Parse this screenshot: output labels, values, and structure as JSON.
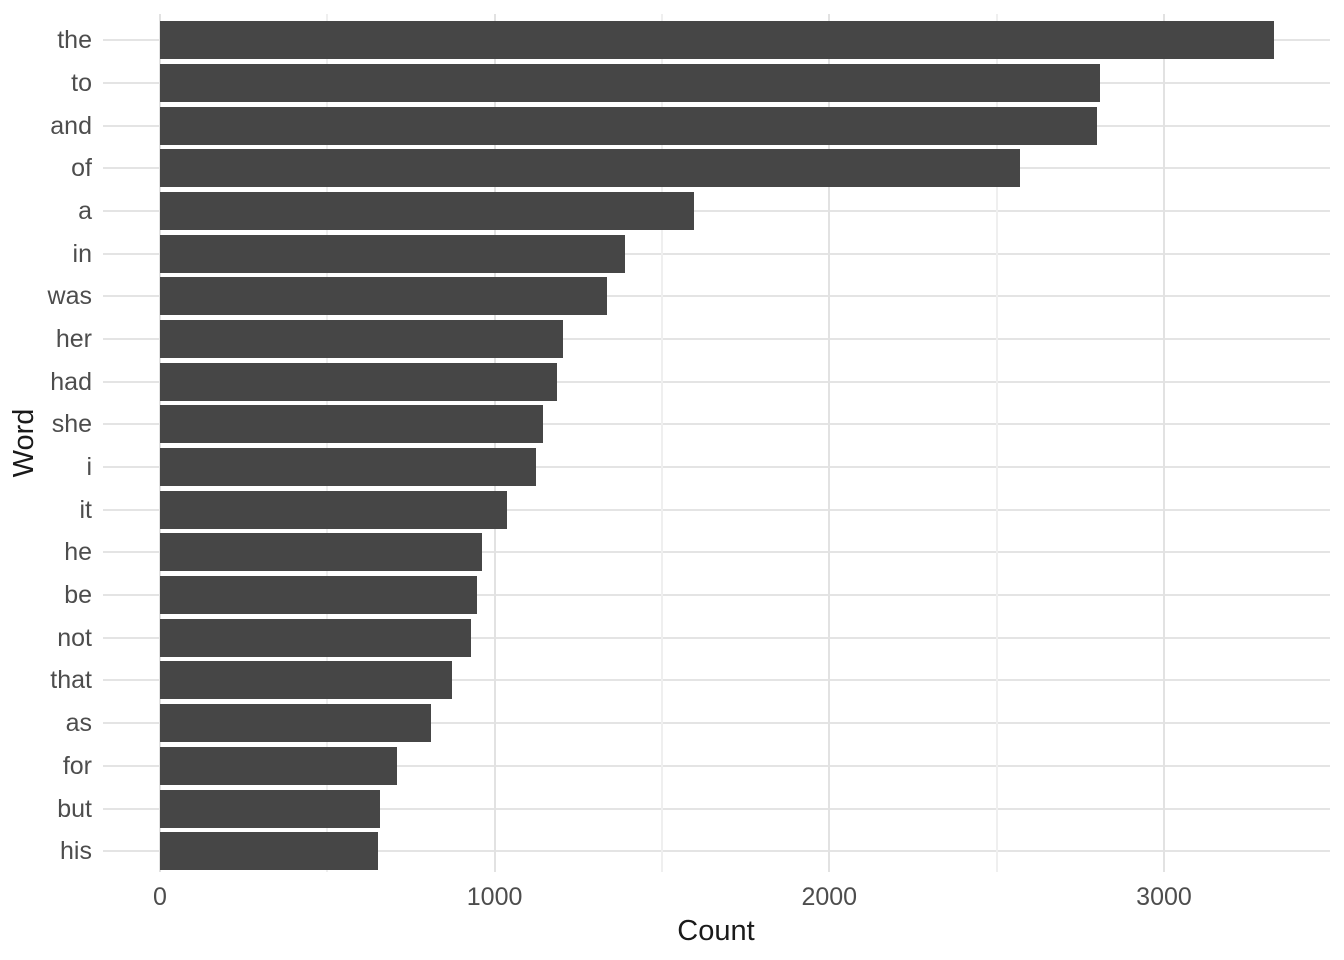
{
  "chart_data": {
    "type": "bar",
    "orientation": "horizontal",
    "title": "",
    "xlabel": "Count",
    "ylabel": "Word",
    "categories": [
      "the",
      "to",
      "and",
      "of",
      "a",
      "in",
      "was",
      "her",
      "had",
      "she",
      "i",
      "it",
      "he",
      "be",
      "not",
      "that",
      "as",
      "for",
      "but",
      "his"
    ],
    "values": [
      3329,
      2808,
      2801,
      2570,
      1595,
      1389,
      1337,
      1204,
      1186,
      1146,
      1124,
      1038,
      961,
      948,
      931,
      872,
      810,
      707,
      657,
      652
    ],
    "x_ticks": [
      0,
      1000,
      2000,
      3000
    ],
    "x_minor_gridlines": [
      500,
      1500,
      2500
    ],
    "xlim": [
      -170,
      3496
    ],
    "grid": true,
    "legend": false,
    "colors": {
      "bar_fill": "#464646",
      "grid_major": "#e2e2e2",
      "grid_minor": "#efefef",
      "tick_label": "#4d4d4d",
      "axis_title": "#1a1a1a",
      "background": "#ffffff"
    }
  }
}
